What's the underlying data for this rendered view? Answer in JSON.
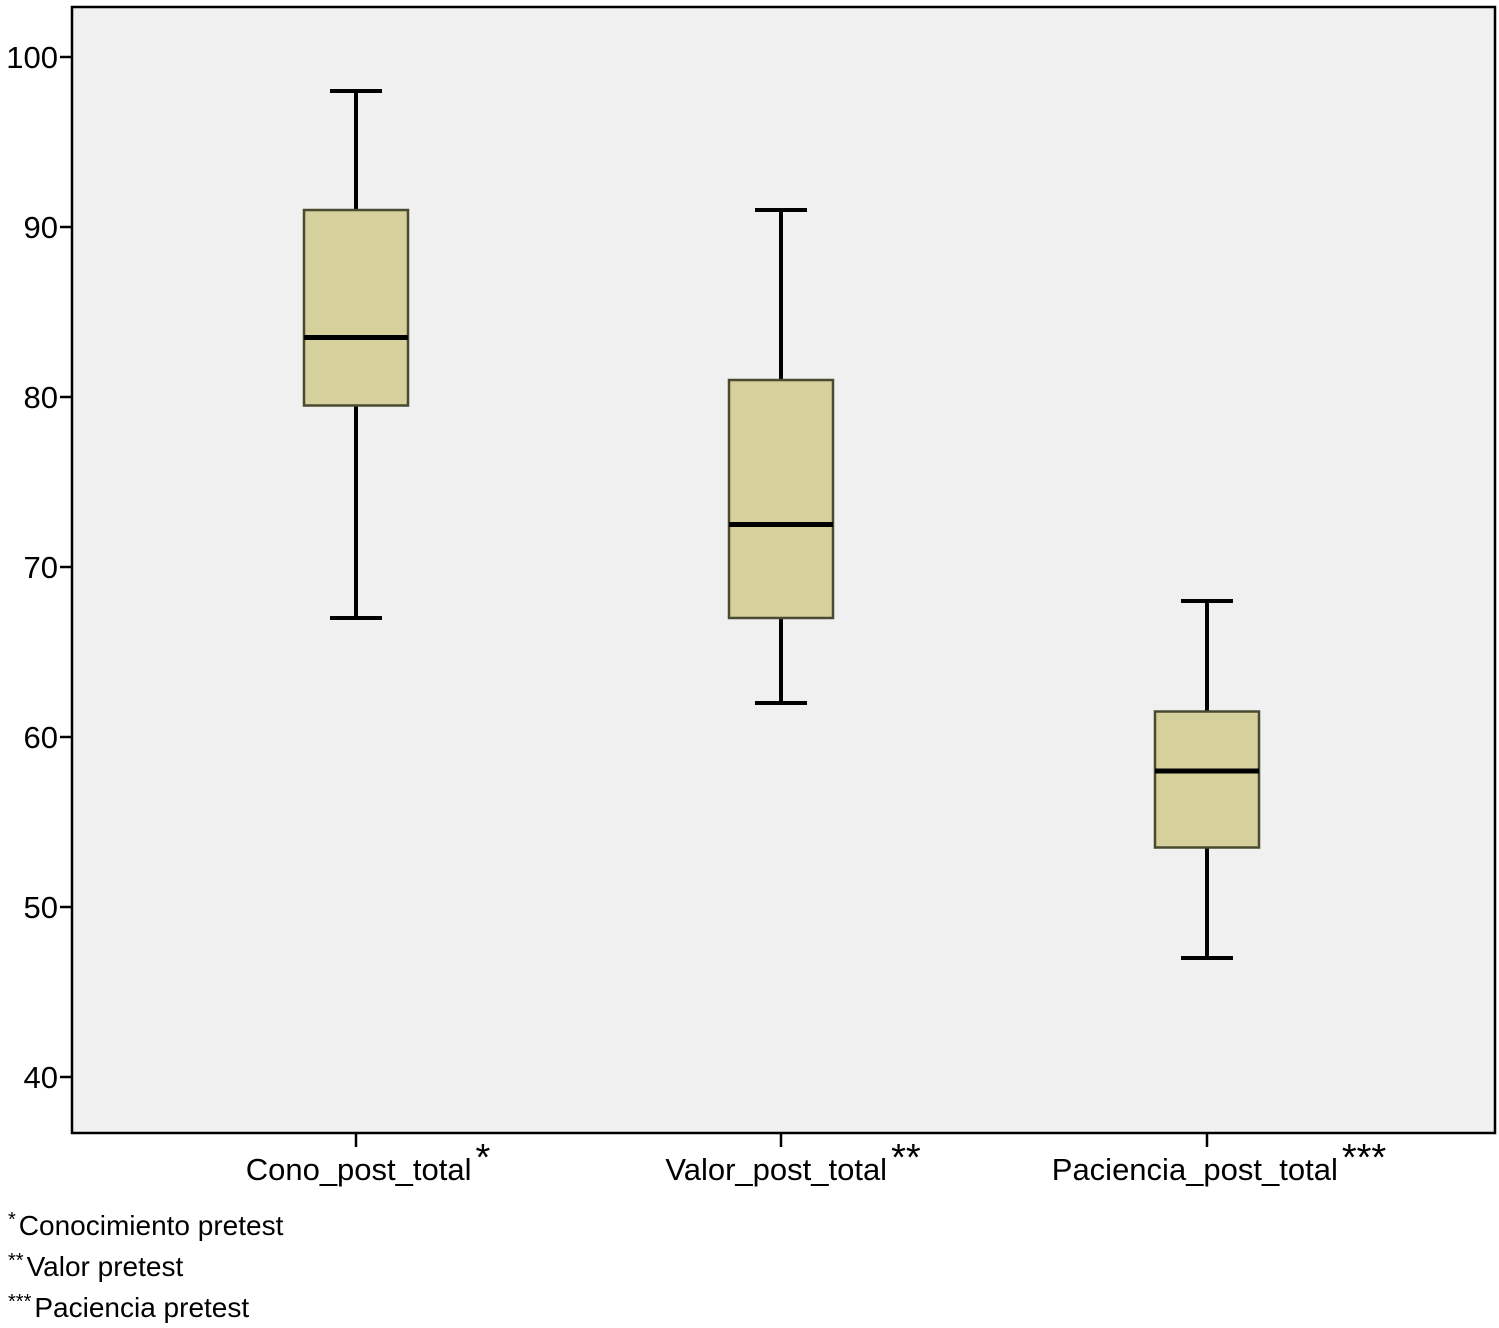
{
  "chart_data": {
    "type": "boxplot",
    "categories": [
      {
        "label": "Cono_post_total",
        "mark": "*"
      },
      {
        "label": "Valor_post_total",
        "mark": "**"
      },
      {
        "label": "Paciencia_post_total",
        "mark": "***"
      }
    ],
    "series": [
      {
        "boxes": [
          {
            "min": 67,
            "q1": 79.5,
            "median": 83.5,
            "q3": 91,
            "max": 98
          },
          {
            "min": 62,
            "q1": 67,
            "median": 72.5,
            "q3": 81,
            "max": 91
          },
          {
            "min": 47,
            "q1": 53.5,
            "median": 58,
            "q3": 61.5,
            "max": 68
          }
        ]
      }
    ],
    "y_ticks": [
      "40",
      "50",
      "60",
      "70",
      "80",
      "90",
      "100"
    ],
    "ylim": [
      37,
      103
    ],
    "xlabel": "",
    "ylabel": "",
    "grid": false,
    "colors": {
      "plot_background": "#f0f0f0",
      "box_fill": "#d6d09c",
      "box_stroke": "#4a4a30",
      "line": "#000000"
    }
  },
  "notes": [
    {
      "mark": "*",
      "text": "Conocimiento pretest"
    },
    {
      "mark": "**",
      "text": "Valor pretest"
    },
    {
      "mark": "***",
      "text": "Paciencia pretest"
    }
  ]
}
